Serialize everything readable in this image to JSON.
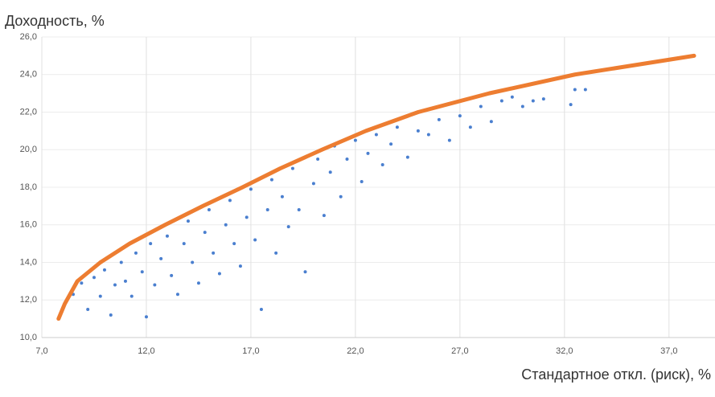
{
  "chart_data": {
    "type": "scatter",
    "y_axis_label": "Доходность, %",
    "x_axis_label": "Стандартное откл. (риск), %",
    "xlim": [
      7,
      39.2
    ],
    "ylim": [
      10,
      26
    ],
    "xticks": [
      {
        "value": 7,
        "label": "7,0"
      },
      {
        "value": 12,
        "label": "12,0"
      },
      {
        "value": 17,
        "label": "17,0"
      },
      {
        "value": 22,
        "label": "22,0"
      },
      {
        "value": 27,
        "label": "27,0"
      },
      {
        "value": 32,
        "label": "32,0"
      },
      {
        "value": 37,
        "label": "37,0"
      }
    ],
    "yticks": [
      {
        "value": 10,
        "label": "10,0"
      },
      {
        "value": 12,
        "label": "12,0"
      },
      {
        "value": 14,
        "label": "14,0"
      },
      {
        "value": 16,
        "label": "16,0"
      },
      {
        "value": 18,
        "label": "18,0"
      },
      {
        "value": 20,
        "label": "20,0"
      },
      {
        "value": 22,
        "label": "22,0"
      },
      {
        "value": 24,
        "label": "24,0"
      },
      {
        "value": 26,
        "label": "26,0"
      }
    ],
    "grid": true,
    "series": [
      {
        "type": "scatter",
        "color": "#4a7fcf",
        "x": [
          8.5,
          8.9,
          9.2,
          9.5,
          9.8,
          10.0,
          10.3,
          10.5,
          10.8,
          11.0,
          11.3,
          11.5,
          11.8,
          12.0,
          12.2,
          12.4,
          12.7,
          13.0,
          13.2,
          13.5,
          13.8,
          14.0,
          14.2,
          14.5,
          14.8,
          15.0,
          15.2,
          15.5,
          15.8,
          16.0,
          16.2,
          16.5,
          16.8,
          17.0,
          17.2,
          17.5,
          17.8,
          18.0,
          18.2,
          18.5,
          18.8,
          19.0,
          19.3,
          19.6,
          20.0,
          20.2,
          20.5,
          20.8,
          21.0,
          21.3,
          21.6,
          22.0,
          22.3,
          22.6,
          23.0,
          23.3,
          23.7,
          24.0,
          24.5,
          25.0,
          25.5,
          26.0,
          26.5,
          27.0,
          27.5,
          28.0,
          28.5,
          29.0,
          29.5,
          30.0,
          30.5,
          31.0,
          32.3,
          32.5,
          33.0
        ],
        "values": [
          12.3,
          12.9,
          11.5,
          13.2,
          12.2,
          13.6,
          11.2,
          12.8,
          14.0,
          13.0,
          12.2,
          14.5,
          13.5,
          11.1,
          15.0,
          12.8,
          14.2,
          15.4,
          13.3,
          12.3,
          15.0,
          16.2,
          14.0,
          12.9,
          15.6,
          16.8,
          14.5,
          13.4,
          16.0,
          17.3,
          15.0,
          13.8,
          16.4,
          17.9,
          15.2,
          11.5,
          16.8,
          18.4,
          14.5,
          17.5,
          15.9,
          19.0,
          16.8,
          13.5,
          18.2,
          19.5,
          16.5,
          18.8,
          20.2,
          17.5,
          19.5,
          20.5,
          18.3,
          19.8,
          20.8,
          19.2,
          20.3,
          21.2,
          19.6,
          21.0,
          20.8,
          21.6,
          20.5,
          21.8,
          21.2,
          22.3,
          21.5,
          22.6,
          22.8,
          22.3,
          22.6,
          22.7,
          22.4,
          23.2,
          23.2
        ]
      },
      {
        "type": "line",
        "color": "#ed7d31",
        "x": [
          7.8,
          8.1,
          8.7,
          9.8,
          11.2,
          12.9,
          14.7,
          16.6,
          18.4,
          20.4,
          22.5,
          25.0,
          28.4,
          32.5,
          38.2
        ],
        "values": [
          11.0,
          11.8,
          13.0,
          14.0,
          15.0,
          16.0,
          17.0,
          18.0,
          19.0,
          20.0,
          21.0,
          22.0,
          23.0,
          24.0,
          25.0
        ]
      }
    ]
  }
}
